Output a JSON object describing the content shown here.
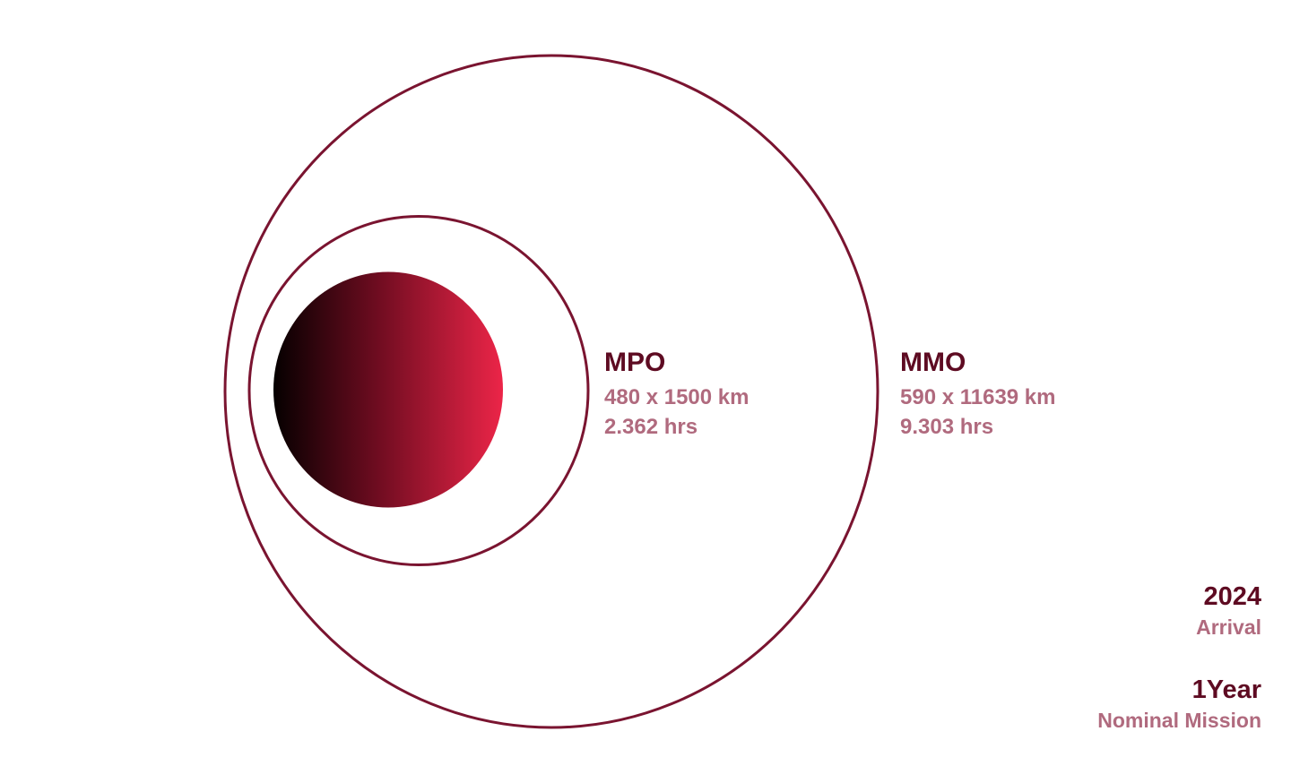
{
  "colors": {
    "orbit_stroke": "#7a1430",
    "title_text": "#5e0b22",
    "detail_text": "#b06a7e",
    "planet_gradient_start": "#050000",
    "planet_gradient_mid": "#6e0c20",
    "planet_gradient_end": "#ec2548"
  },
  "planet": {
    "icon": "planet-gradient-sphere"
  },
  "orbits": {
    "mpo": {
      "name": "MPO",
      "dimensions": "480 x 1500 km",
      "period": "2.362 hrs"
    },
    "mmo": {
      "name": "MMO",
      "dimensions": "590 x 11639 km",
      "period": "9.303 hrs"
    }
  },
  "stats": {
    "arrival": {
      "value": "2024",
      "caption": "Arrival"
    },
    "mission": {
      "value": "1Year",
      "caption": "Nominal Mission"
    }
  }
}
